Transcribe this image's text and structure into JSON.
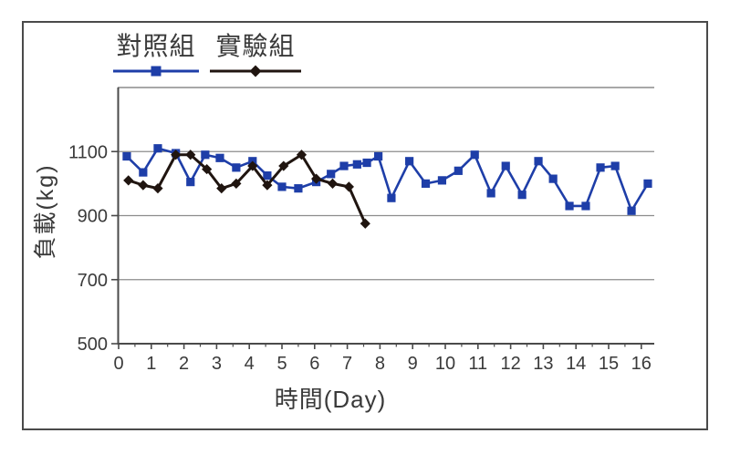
{
  "legend": {
    "items": [
      {
        "label": "對照組",
        "marker": "square",
        "color": "#1e3ea8"
      },
      {
        "label": "實驗組",
        "marker": "diamond",
        "color": "#201510"
      }
    ]
  },
  "colors": {
    "axis": "#4a4a4a",
    "gridline": "#8c8c8c",
    "tick_text": "#3a3a3a",
    "control_blue": "#1e3ea8",
    "experiment_black": "#201510"
  },
  "chart_data": {
    "type": "line",
    "title": "",
    "xlabel": "時間(Day)",
    "ylabel": "負載(kg)",
    "xlim": [
      0,
      16.4
    ],
    "ylim": [
      500,
      1300
    ],
    "x_ticks": [
      0,
      1,
      2,
      3,
      4,
      5,
      6,
      7,
      8,
      9,
      10,
      11,
      12,
      13,
      14,
      15,
      16
    ],
    "x_minor_tick_step": 0.5,
    "y_ticks": [
      500,
      700,
      900,
      1100
    ],
    "grid": true,
    "legend_position": "top-left",
    "series": [
      {
        "name": "對照組",
        "color": "#1e3ea8",
        "marker": "square",
        "points": [
          [
            0.25,
            1085
          ],
          [
            0.75,
            1035
          ],
          [
            1.2,
            1110
          ],
          [
            1.75,
            1095
          ],
          [
            2.2,
            1005
          ],
          [
            2.65,
            1090
          ],
          [
            3.1,
            1080
          ],
          [
            3.6,
            1050
          ],
          [
            4.1,
            1070
          ],
          [
            4.55,
            1025
          ],
          [
            5.0,
            990
          ],
          [
            5.5,
            985
          ],
          [
            6.05,
            1005
          ],
          [
            6.5,
            1030
          ],
          [
            6.9,
            1055
          ],
          [
            7.3,
            1060
          ],
          [
            7.6,
            1065
          ],
          [
            7.95,
            1085
          ],
          [
            8.35,
            955
          ],
          [
            8.9,
            1070
          ],
          [
            9.4,
            1000
          ],
          [
            9.9,
            1010
          ],
          [
            10.4,
            1040
          ],
          [
            10.9,
            1090
          ],
          [
            11.4,
            970
          ],
          [
            11.85,
            1055
          ],
          [
            12.35,
            965
          ],
          [
            12.85,
            1070
          ],
          [
            13.3,
            1015
          ],
          [
            13.8,
            930
          ],
          [
            14.3,
            930
          ],
          [
            14.75,
            1050
          ],
          [
            15.2,
            1055
          ],
          [
            15.7,
            915
          ],
          [
            16.2,
            1000
          ]
        ]
      },
      {
        "name": "實驗組",
        "color": "#201510",
        "marker": "diamond",
        "points": [
          [
            0.3,
            1010
          ],
          [
            0.75,
            995
          ],
          [
            1.2,
            985
          ],
          [
            1.75,
            1090
          ],
          [
            2.2,
            1090
          ],
          [
            2.7,
            1045
          ],
          [
            3.15,
            985
          ],
          [
            3.6,
            1000
          ],
          [
            4.1,
            1055
          ],
          [
            4.55,
            995
          ],
          [
            5.05,
            1055
          ],
          [
            5.6,
            1090
          ],
          [
            6.05,
            1015
          ],
          [
            6.55,
            1000
          ],
          [
            7.05,
            990
          ],
          [
            7.55,
            875
          ]
        ]
      }
    ]
  }
}
